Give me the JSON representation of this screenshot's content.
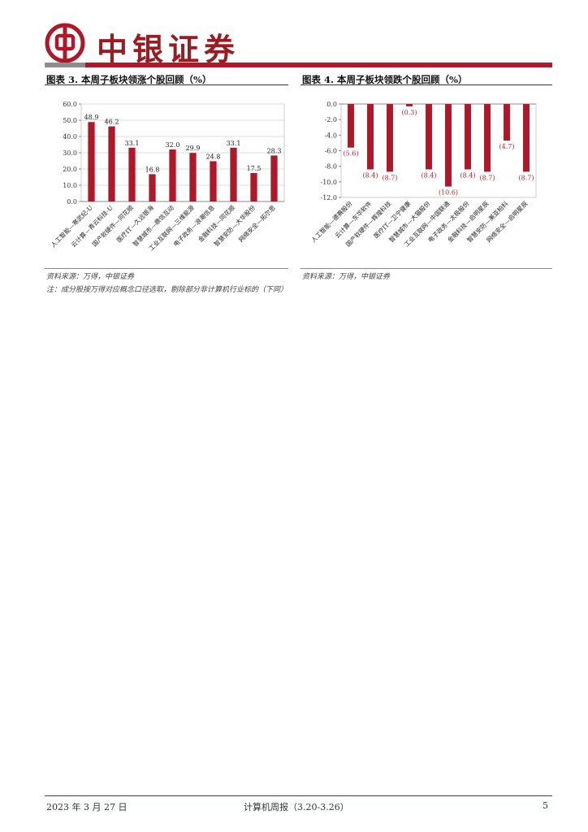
{
  "header": {
    "brand": "中银证券"
  },
  "figures": [
    {
      "title": "图表 3. 本周子板块领涨个股回顾（%）",
      "source": "资料来源：万得，中银证券",
      "note": "注：成分股按万得对应概念口径选取，剔除部分非计算机行业标的（下同）"
    },
    {
      "title": "图表 4. 本周子板块领跌个股回顾（%）",
      "source": "资料来源：万得，中银证券"
    }
  ],
  "chart_data": [
    {
      "type": "bar",
      "categories": [
        "人工智能—寒武纪-U",
        "云计算—青云科技-U",
        "国产软硬件—同花顺",
        "医疗IT—久远银海",
        "智慧城市—鼎信互动",
        "工业互联网—三维能源",
        "电子政务—浪潮信息",
        "金融科技—同花顺",
        "智慧安防—大华股份",
        "网络安全—拓尔思"
      ],
      "values": [
        48.9,
        46.2,
        33.1,
        16.8,
        32.0,
        29.9,
        24.8,
        33.1,
        17.5,
        28.3
      ],
      "labels": [
        "48.9",
        "46.2",
        "33.1",
        "16.8",
        "32.0",
        "29.9",
        "24.8",
        "33.1",
        "17.5",
        "28.3"
      ],
      "ylim": [
        0,
        60
      ],
      "yticks": [
        "0.0",
        "10.0",
        "20.0",
        "30.0",
        "40.0",
        "50.0",
        "60.0"
      ],
      "color": "#b0182a",
      "grid": true
    },
    {
      "type": "bar",
      "categories": [
        "人工智能—德赛股份",
        "云计算—东华软件",
        "国产软硬件—辉煌科技",
        "医疗IT—卫宁健康",
        "智慧城市—大猫股份",
        "工业互联网—中国联通",
        "电子政务—太极股份",
        "金融科技—启明星辰",
        "智慧安防—美亚柏科",
        "网络安全—启明星辰"
      ],
      "values": [
        -5.6,
        -8.4,
        -8.7,
        -0.3,
        -8.4,
        -10.6,
        -8.4,
        -8.7,
        -4.7,
        -8.7
      ],
      "labels": [
        "(5.6)",
        "(8.4)",
        "(8.7)",
        "(0.3)",
        "(8.4)",
        "(10.6)",
        "(8.4)",
        "(8.7)",
        "(4.7)",
        "(8.7)"
      ],
      "ylim": [
        -12,
        0
      ],
      "yticks": [
        "0.0",
        "-2.0",
        "-4.0",
        "-6.0",
        "-8.0",
        "-10.0",
        "-12.0"
      ],
      "color": "#b0182a",
      "label_color": "#c0202e",
      "grid": false
    }
  ],
  "footer": {
    "date": "2023 年 3 月 27 日",
    "report": "计算机周报（3.20-3.26）",
    "page": "5"
  }
}
